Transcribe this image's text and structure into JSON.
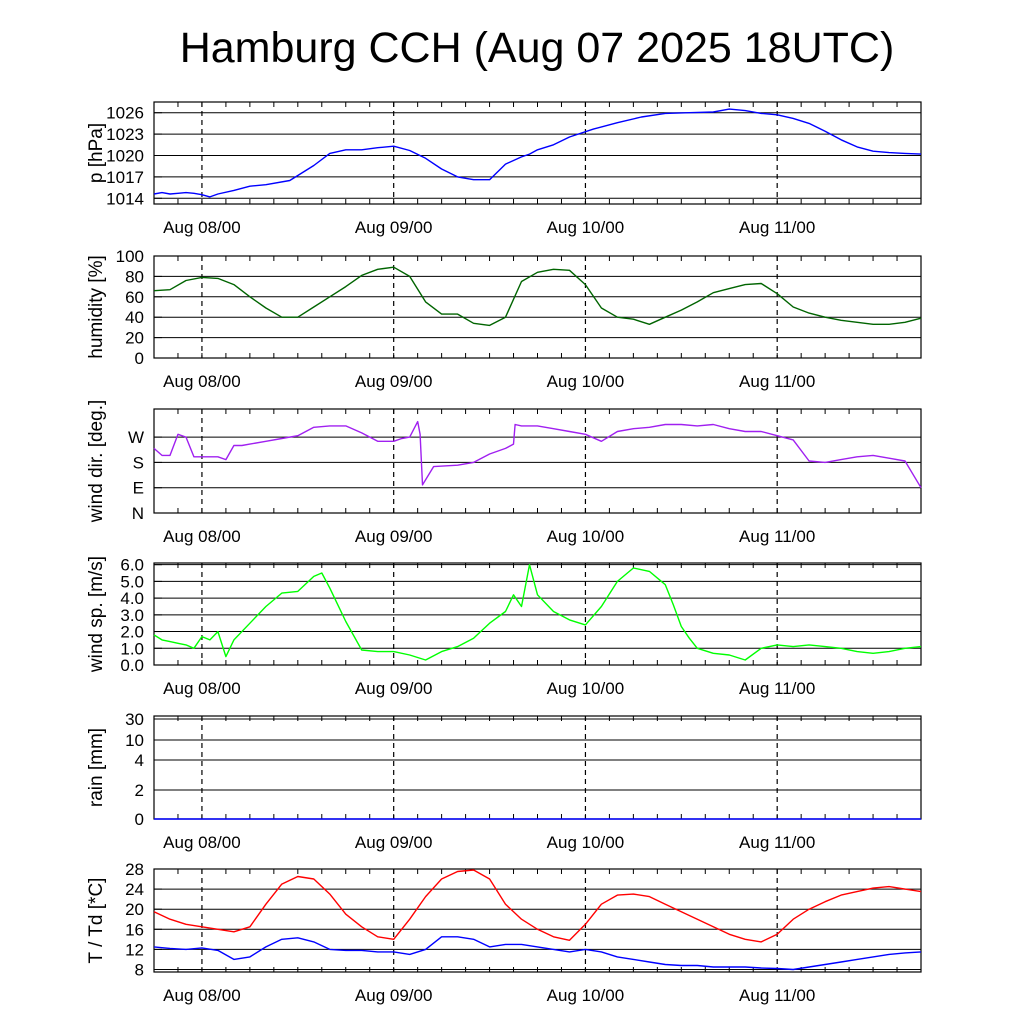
{
  "title": "Hamburg CCH (Aug 07 2025 18UTC)",
  "x_tick_labels": [
    "Aug 08/00",
    "Aug 09/00",
    "Aug 10/00",
    "Aug 11/00"
  ],
  "chart_data": [
    {
      "type": "line",
      "ylabel": "p [hPa]",
      "x_unit": "hours since Aug 07 18UTC",
      "xlim": [
        0,
        96
      ],
      "ylim": [
        1013.2,
        1027.5
      ],
      "yticks": [
        1014,
        1017,
        1020,
        1023,
        1026
      ],
      "grid": true,
      "series": [
        {
          "color": "#0000ff",
          "x": [
            0,
            1,
            2,
            3,
            4,
            5,
            6,
            7,
            8,
            10,
            12,
            14,
            17,
            20,
            22,
            24,
            26,
            28,
            30,
            32,
            34,
            36,
            38,
            40,
            42,
            44,
            46,
            47,
            48,
            50,
            52,
            55,
            58,
            61,
            64,
            67,
            70,
            72,
            74,
            76,
            78,
            80,
            82,
            84,
            86,
            88,
            90,
            92,
            94,
            96
          ],
          "y": [
            1014.6,
            1014.8,
            1014.6,
            1014.7,
            1014.8,
            1014.7,
            1014.5,
            1014.2,
            1014.6,
            1015.1,
            1015.7,
            1015.9,
            1016.5,
            1018.6,
            1020.3,
            1020.8,
            1020.8,
            1021.1,
            1021.3,
            1020.7,
            1019.6,
            1018.1,
            1017.0,
            1016.6,
            1016.6,
            1018.8,
            1019.8,
            1020.2,
            1020.8,
            1021.5,
            1022.6,
            1023.7,
            1024.6,
            1025.4,
            1025.9,
            1026.0,
            1026.1,
            1026.5,
            1026.3,
            1025.9,
            1025.7,
            1025.2,
            1024.5,
            1023.4,
            1022.2,
            1021.2,
            1020.6,
            1020.4,
            1020.3,
            1020.2
          ]
        }
      ]
    },
    {
      "type": "line",
      "ylabel": "humidity [%]",
      "x_unit": "hours since Aug 07 18UTC",
      "xlim": [
        0,
        96
      ],
      "ylim": [
        0,
        100
      ],
      "yticks": [
        0,
        20,
        40,
        60,
        80,
        100
      ],
      "grid": true,
      "series": [
        {
          "color": "#006400",
          "x": [
            0,
            2,
            4,
            6,
            8,
            10,
            12,
            14,
            16,
            18,
            20,
            22,
            24,
            26,
            28,
            30,
            32,
            34,
            36,
            38,
            40,
            42,
            44,
            46,
            48,
            50,
            52,
            54,
            56,
            58,
            60,
            62,
            64,
            66,
            68,
            70,
            72,
            74,
            76,
            78,
            80,
            82,
            84,
            86,
            88,
            90,
            92,
            94,
            96
          ],
          "y": [
            66,
            67,
            76,
            79,
            78,
            72,
            60,
            49,
            40,
            40,
            50,
            60,
            70,
            81,
            87,
            89,
            80,
            55,
            43,
            43,
            34,
            32,
            40,
            75,
            84,
            87,
            86,
            72,
            49,
            40,
            38,
            33,
            40,
            47,
            55,
            64,
            68,
            72,
            73,
            63,
            50,
            44,
            40,
            37,
            35,
            33,
            33,
            35,
            39
          ]
        }
      ]
    },
    {
      "type": "line",
      "ylabel": "wind dir. [deg.]",
      "x_unit": "hours since Aug 07 18UTC",
      "xlim": [
        0,
        96
      ],
      "ylim": [
        0,
        370
      ],
      "yticks": [
        0,
        90,
        180,
        270
      ],
      "yticklabels": [
        "N",
        "E",
        "S",
        "W"
      ],
      "grid": true,
      "series": [
        {
          "color": "#a020f0",
          "x": [
            0,
            1,
            2,
            3,
            4,
            5,
            6,
            8,
            9,
            10,
            11,
            12,
            14,
            16,
            18,
            20,
            22,
            24,
            26,
            28,
            30,
            31,
            32,
            33,
            33.3,
            33.6,
            35,
            38,
            40,
            42,
            44,
            45,
            45.2,
            46,
            48,
            50,
            52,
            54,
            56,
            58,
            60,
            62,
            64,
            66,
            68,
            70,
            72,
            74,
            76,
            78,
            80,
            82,
            84,
            86,
            88,
            90,
            92,
            94,
            96
          ],
          "y": [
            230,
            205,
            205,
            280,
            270,
            200,
            200,
            200,
            190,
            240,
            240,
            245,
            255,
            265,
            275,
            305,
            310,
            310,
            285,
            255,
            255,
            265,
            270,
            325,
            280,
            100,
            165,
            170,
            180,
            210,
            230,
            245,
            315,
            310,
            310,
            300,
            290,
            280,
            255,
            290,
            300,
            305,
            315,
            315,
            310,
            315,
            300,
            290,
            290,
            275,
            260,
            185,
            180,
            190,
            200,
            205,
            195,
            185,
            90
          ]
        }
      ]
    },
    {
      "type": "line",
      "ylabel": "wind sp. [m/s]",
      "x_unit": "hours since Aug 07 18UTC",
      "xlim": [
        0,
        96
      ],
      "ylim": [
        0,
        6.1
      ],
      "yticks": [
        0.0,
        1.0,
        2.0,
        3.0,
        4.0,
        5.0,
        6.0
      ],
      "grid": true,
      "series": [
        {
          "color": "#00ff00",
          "x": [
            0,
            1,
            2,
            3,
            4,
            5,
            6,
            7,
            8,
            9,
            10,
            12,
            14,
            16,
            18,
            20,
            21,
            22,
            23,
            24,
            26,
            28,
            30,
            32,
            34,
            36,
            38,
            40,
            42,
            44,
            45,
            46,
            47,
            48,
            50,
            52,
            54,
            56,
            58,
            60,
            62,
            64,
            65,
            66,
            67,
            68,
            70,
            72,
            74,
            76,
            78,
            80,
            82,
            84,
            86,
            88,
            90,
            92,
            94,
            96
          ],
          "y": [
            1.8,
            1.5,
            1.4,
            1.3,
            1.2,
            1.0,
            1.7,
            1.5,
            2.0,
            0.5,
            1.5,
            2.5,
            3.5,
            4.3,
            4.4,
            5.3,
            5.5,
            4.6,
            3.6,
            2.6,
            0.9,
            0.8,
            0.8,
            0.6,
            0.3,
            0.8,
            1.1,
            1.6,
            2.5,
            3.2,
            4.2,
            3.5,
            6.0,
            4.2,
            3.2,
            2.7,
            2.4,
            3.5,
            5.0,
            5.8,
            5.6,
            4.8,
            3.6,
            2.3,
            1.6,
            1.0,
            0.7,
            0.6,
            0.3,
            1.0,
            1.2,
            1.1,
            1.2,
            1.1,
            1.0,
            0.8,
            0.7,
            0.8,
            1.0,
            1.1
          ]
        }
      ]
    },
    {
      "type": "line",
      "ylabel": "rain [mm]",
      "x_unit": "hours since Aug 07 18UTC",
      "xlim": [
        0,
        96
      ],
      "yticks": [
        0,
        2,
        4,
        10,
        30
      ],
      "grid": true,
      "series": [
        {
          "color": "#0000ff",
          "x": [
            0,
            96
          ],
          "y": [
            0,
            0
          ]
        }
      ]
    },
    {
      "type": "line",
      "ylabel": "T / Td [*C]",
      "x_unit": "hours since Aug 07 18UTC",
      "xlim": [
        0,
        96
      ],
      "ylim": [
        7.5,
        28
      ],
      "yticks": [
        8,
        12,
        16,
        20,
        24,
        28
      ],
      "grid": true,
      "series": [
        {
          "color": "#ff0000",
          "x": [
            0,
            2,
            4,
            6,
            8,
            10,
            12,
            14,
            16,
            18,
            20,
            22,
            24,
            26,
            28,
            30,
            32,
            34,
            36,
            38,
            40,
            42,
            44,
            46,
            48,
            50,
            52,
            54,
            56,
            58,
            60,
            62,
            64,
            66,
            68,
            70,
            72,
            74,
            76,
            78,
            80,
            82,
            84,
            86,
            88,
            90,
            92,
            94,
            96
          ],
          "y": [
            19.5,
            18.0,
            17.0,
            16.5,
            16.0,
            15.5,
            16.5,
            21.0,
            25.0,
            26.5,
            26.0,
            23.0,
            19.0,
            16.5,
            14.5,
            14.0,
            18.0,
            22.5,
            26.0,
            27.5,
            27.8,
            26.0,
            21.0,
            18.0,
            16.0,
            14.5,
            13.8,
            17.0,
            21.0,
            22.8,
            23.0,
            22.5,
            21.0,
            19.5,
            18.0,
            16.5,
            15.0,
            14.0,
            13.5,
            15.0,
            18.0,
            20.0,
            21.5,
            22.8,
            23.5,
            24.2,
            24.5,
            24.0,
            23.5
          ]
        },
        {
          "color": "#0000ff",
          "x": [
            0,
            2,
            4,
            6,
            8,
            10,
            12,
            14,
            16,
            18,
            20,
            22,
            24,
            26,
            28,
            30,
            32,
            34,
            36,
            38,
            40,
            42,
            44,
            46,
            48,
            50,
            52,
            54,
            56,
            58,
            60,
            62,
            64,
            66,
            68,
            70,
            72,
            74,
            76,
            78,
            80,
            82,
            84,
            86,
            88,
            90,
            92,
            94,
            96
          ],
          "y": [
            12.5,
            12.2,
            12.0,
            12.3,
            11.8,
            10.0,
            10.5,
            12.5,
            14.0,
            14.3,
            13.5,
            12.0,
            11.8,
            11.8,
            11.5,
            11.5,
            11.0,
            12.0,
            14.5,
            14.5,
            14.0,
            12.5,
            13.0,
            13.0,
            12.5,
            12.0,
            11.5,
            12.0,
            11.5,
            10.5,
            10.0,
            9.5,
            9.0,
            8.8,
            8.8,
            8.5,
            8.5,
            8.5,
            8.3,
            8.2,
            8.0,
            8.5,
            9.0,
            9.5,
            10.0,
            10.5,
            11.0,
            11.3,
            11.5
          ]
        }
      ]
    }
  ]
}
